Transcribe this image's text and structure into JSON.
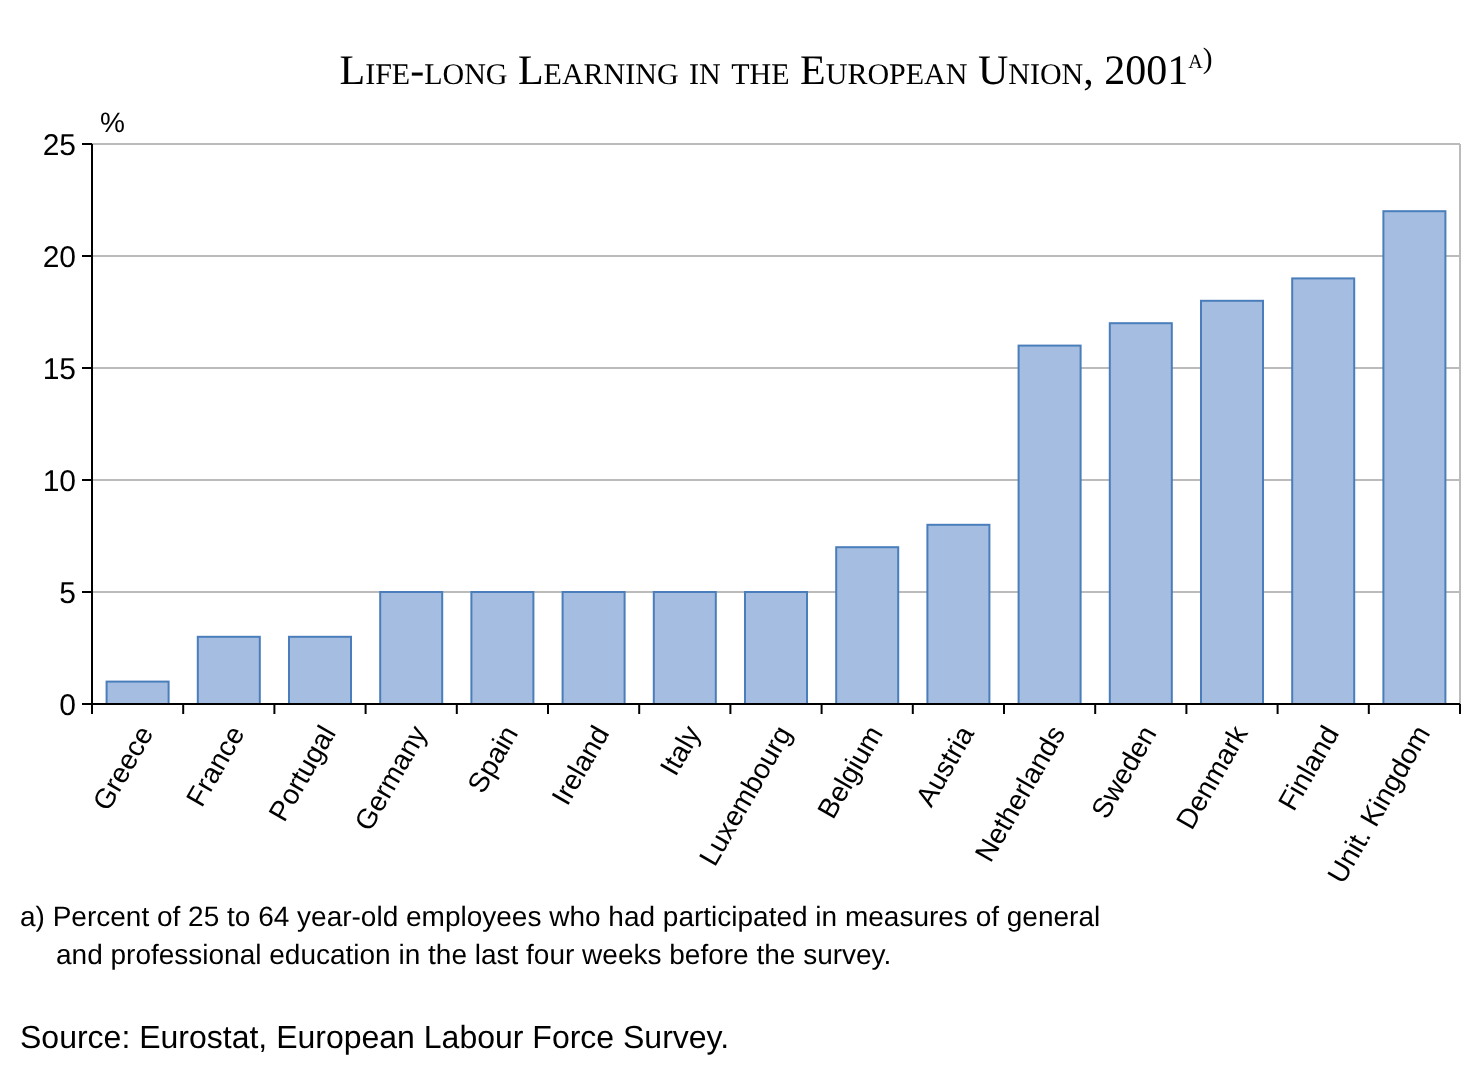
{
  "chart_data": {
    "type": "bar",
    "title": "Life-long Learning in the European Union, 2001$^{a)}$",
    "ylabel": "%",
    "categories": [
      "Greece",
      "France",
      "Portugal",
      "Germany",
      "Spain",
      "Ireland",
      "Italy",
      "Luxembourg",
      "Belgium",
      "Austria",
      "Netherlands",
      "Sweden",
      "Denmark",
      "Finland",
      "Unit. Kingdom"
    ],
    "values": [
      1,
      3,
      3,
      5,
      5,
      5,
      5,
      5,
      7,
      8,
      16,
      17,
      18,
      19,
      22
    ],
    "color": "#a5bde0",
    "ylim": [
      0,
      25
    ],
    "yticks": [
      0,
      5,
      10,
      15,
      20,
      25
    ],
    "grid": "y",
    "annotations": [
      "a) Percent of 25 to 64 year-old employees who had participated in measures of general and professional education in the last four weeks before the survey.",
      "Source: Eurostat, European Labour Force Survey."
    ]
  }
}
